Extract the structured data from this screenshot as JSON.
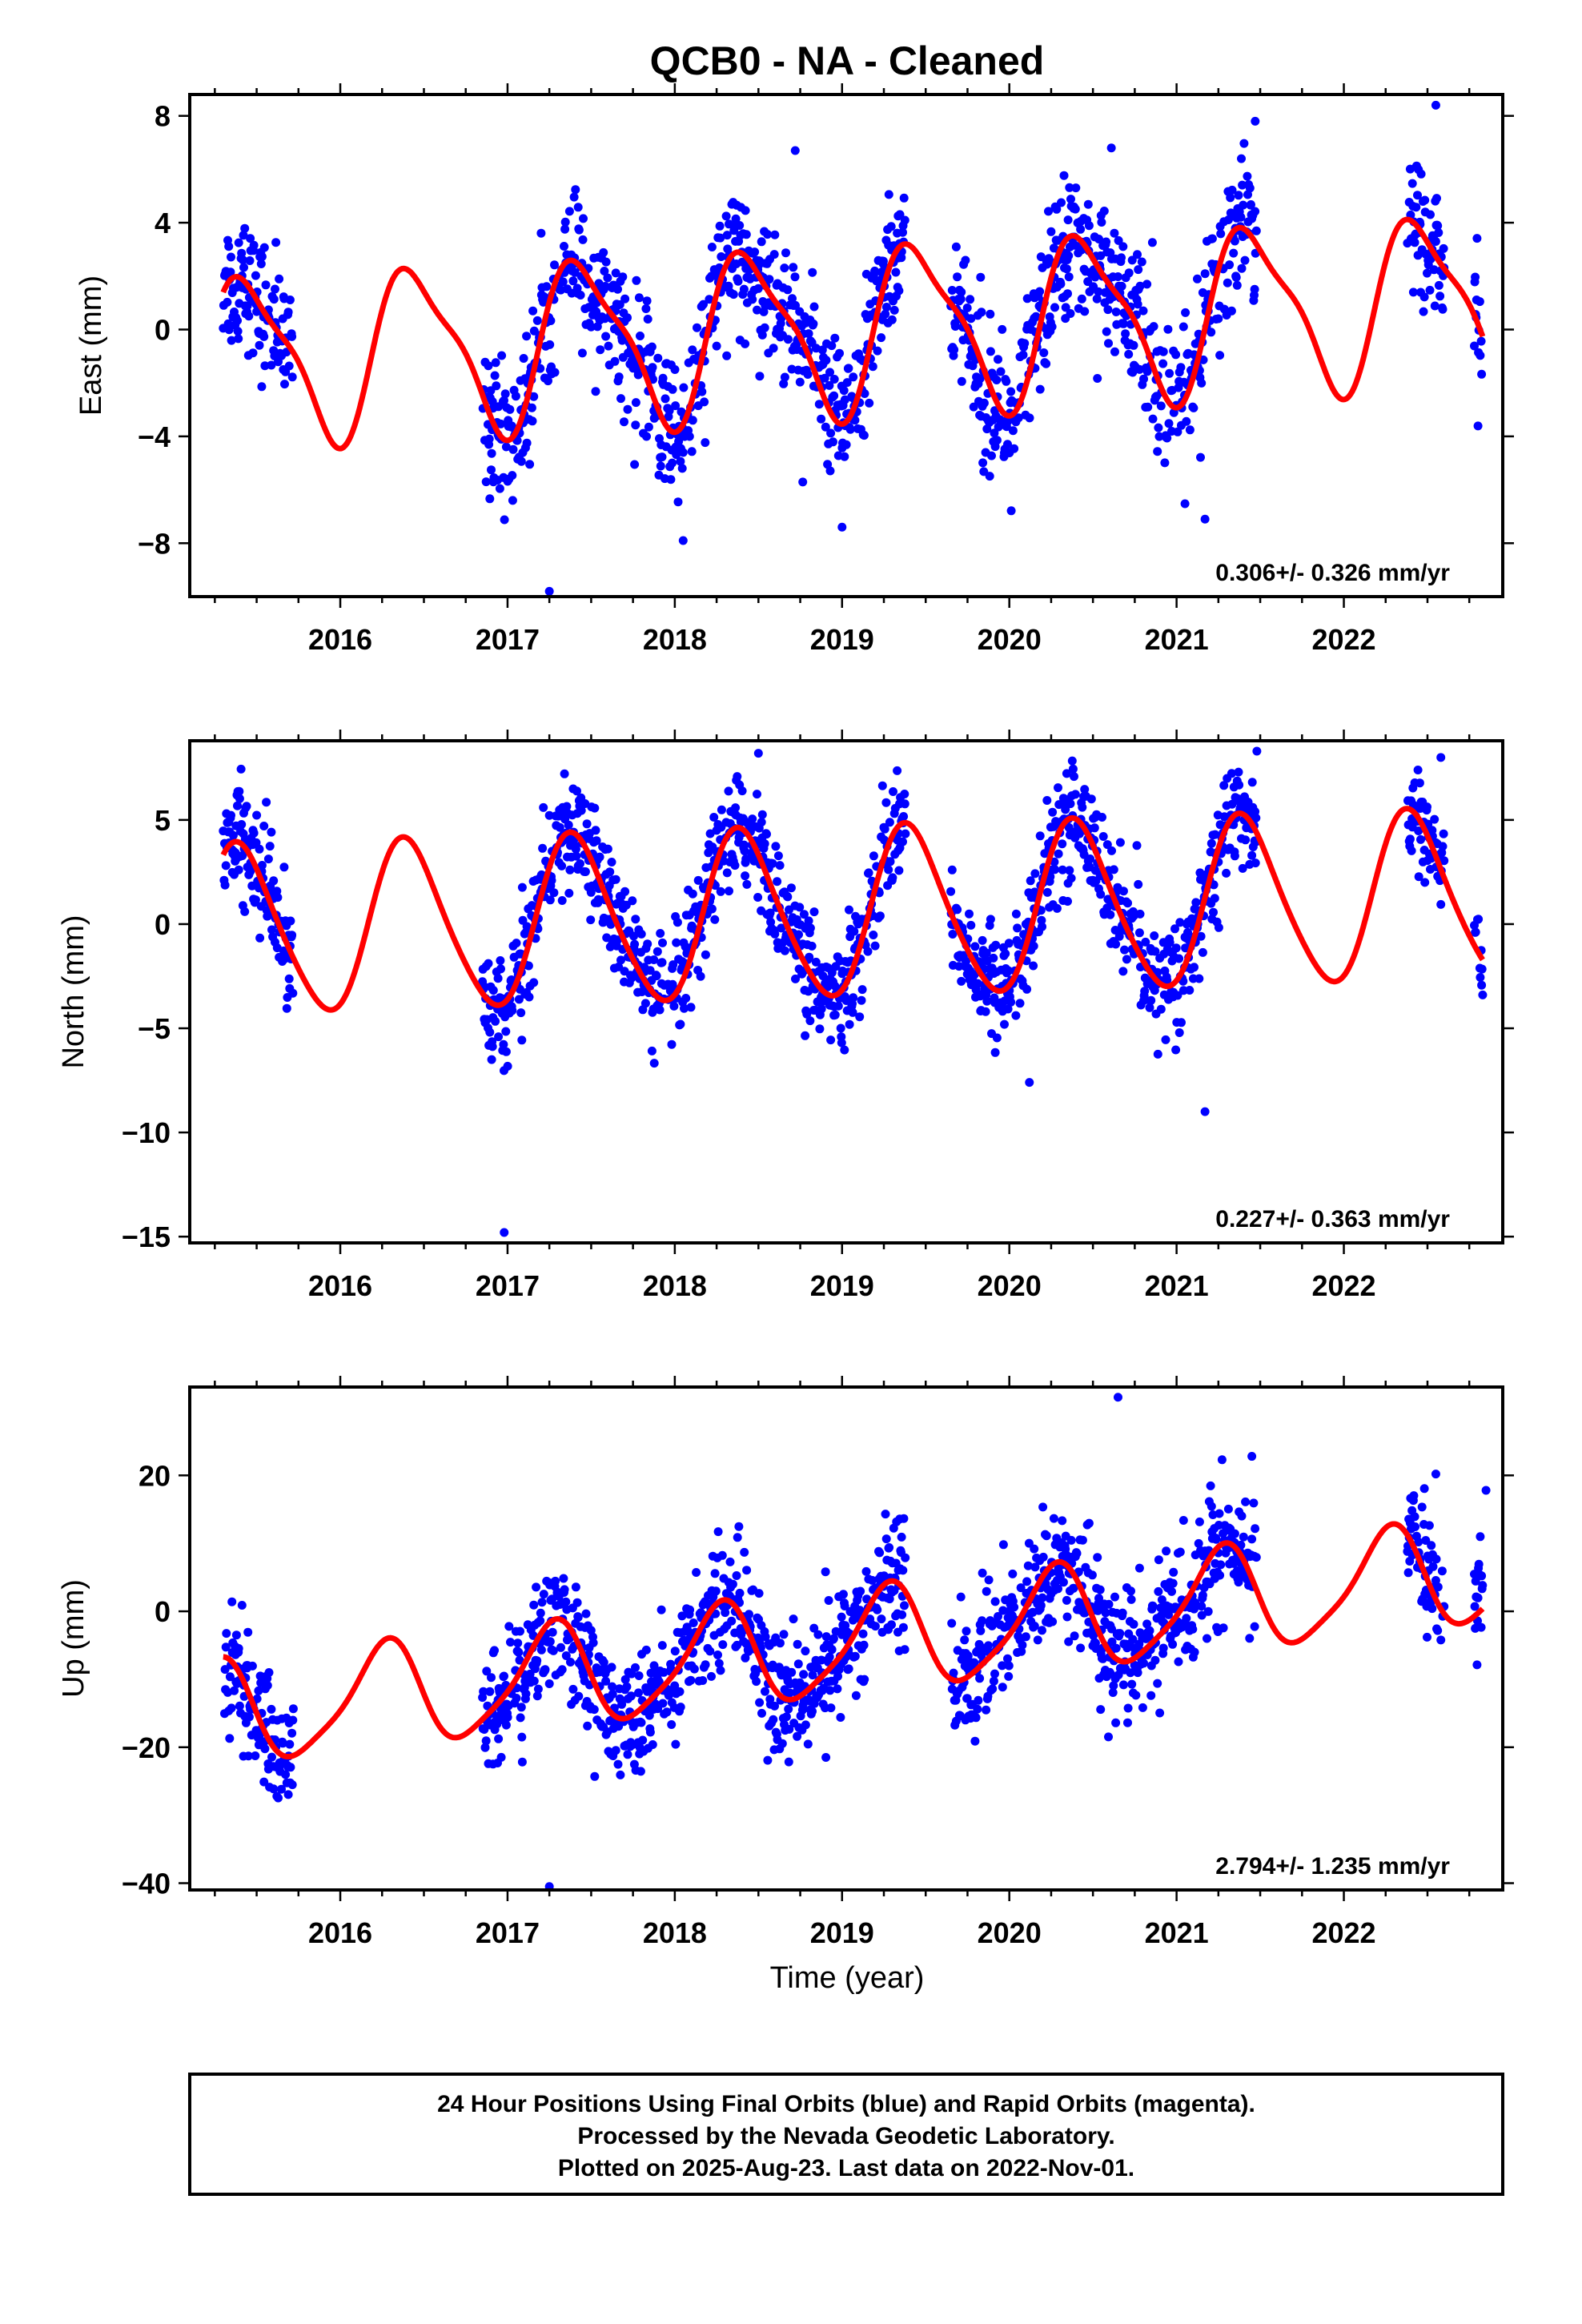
{
  "title": "QCB0  - NA - Cleaned",
  "xlabel": "Time (year)",
  "footer": [
    "24 Hour Positions Using Final Orbits (blue) and Rapid Orbits (magenta).",
    "Processed by the Nevada Geodetic Laboratory.",
    "Plotted on 2025-Aug-23. Last data on 2022-Nov-01."
  ],
  "colors": {
    "points": "#0000ff",
    "model": "#ff0000",
    "frame": "#000000"
  },
  "chart_data": [
    {
      "type": "scatter",
      "name": "east",
      "ylabel": "East (mm)",
      "xlim": [
        2015.1,
        2022.95
      ],
      "ylim": [
        -10,
        8.8
      ],
      "xticks": [
        2016,
        2017,
        2018,
        2019,
        2020,
        2021,
        2022
      ],
      "yticks": [
        -8,
        -4,
        0,
        4,
        8
      ],
      "rate_text": "0.306+/- 0.326 mm/yr",
      "fit": {
        "trend": 0.306,
        "offset": 0.0,
        "annual_amp": 3.0,
        "annual_phase": 0.3,
        "semiannual_amp": 0.8,
        "semiannual_phase": 1.0,
        "x_start": 2015.3,
        "x_end": 2022.83
      },
      "segments": [
        [
          2015.3,
          2015.72
        ],
        [
          2016.85,
          2019.38
        ],
        [
          2019.65,
          2021.48
        ],
        [
          2022.38,
          2022.6
        ],
        [
          2022.78,
          2022.83
        ]
      ],
      "scatter_sigma": 1.3,
      "outliers": [
        [
          2017.25,
          -9.8
        ],
        [
          2018.05,
          -7.9
        ],
        [
          2018.72,
          6.7
        ],
        [
          2019.0,
          -7.4
        ],
        [
          2021.17,
          -7.1
        ],
        [
          2022.55,
          8.4
        ],
        [
          2020.61,
          6.8
        ],
        [
          2021.47,
          7.8
        ]
      ]
    },
    {
      "type": "scatter",
      "name": "north",
      "ylabel": "North (mm)",
      "xlim": [
        2015.1,
        2022.95
      ],
      "ylim": [
        -15.3,
        8.8
      ],
      "xticks": [
        2016,
        2017,
        2018,
        2019,
        2020,
        2021,
        2022
      ],
      "yticks": [
        -15,
        -10,
        -5,
        0,
        5
      ],
      "rate_text": "0.227+/- 0.363 mm/yr",
      "fit": {
        "trend": 0.227,
        "offset": 0.5,
        "annual_amp": 4.0,
        "annual_phase": 0.6,
        "semiannual_amp": 0.5,
        "semiannual_phase": 0.8,
        "x_start": 2015.3,
        "x_end": 2022.83
      },
      "segments": [
        [
          2015.3,
          2015.72
        ],
        [
          2016.85,
          2019.38
        ],
        [
          2019.65,
          2021.48
        ],
        [
          2022.38,
          2022.6
        ],
        [
          2022.78,
          2022.83
        ]
      ],
      "scatter_sigma": 1.3,
      "outliers": [
        [
          2016.98,
          -14.8
        ],
        [
          2020.12,
          -7.6
        ],
        [
          2021.17,
          -9.0
        ],
        [
          2018.5,
          8.2
        ],
        [
          2021.48,
          8.3
        ],
        [
          2022.58,
          8.0
        ],
        [
          2022.83,
          -3.4
        ]
      ]
    },
    {
      "type": "scatter",
      "name": "up",
      "ylabel": "Up (mm)",
      "xlim": [
        2015.1,
        2022.95
      ],
      "ylim": [
        -41,
        33
      ],
      "xticks": [
        2016,
        2017,
        2018,
        2019,
        2020,
        2021,
        2022
      ],
      "yticks": [
        -40,
        -20,
        0,
        20
      ],
      "rate_text": "2.794+/- 1.235 mm/yr",
      "fit": {
        "trend": 2.794,
        "offset": -5.0,
        "annual_amp": 7.5,
        "annual_phase": 1.5,
        "semiannual_amp": 1.5,
        "semiannual_phase": 0.5,
        "x_start": 2015.3,
        "x_end": 2022.83
      },
      "segments": [
        [
          2015.3,
          2015.72
        ],
        [
          2016.85,
          2017.72
        ],
        [
          2017.72,
          2019.38
        ],
        [
          2019.65,
          2021.48
        ],
        [
          2022.38,
          2022.6
        ],
        [
          2022.78,
          2022.83
        ]
      ],
      "scatter_sigma": 4.5,
      "outliers": [
        [
          2017.25,
          -40.5
        ],
        [
          2020.65,
          31.5
        ],
        [
          2021.45,
          22.8
        ],
        [
          2022.55,
          20.2
        ],
        [
          2022.85,
          17.8
        ]
      ]
    }
  ]
}
